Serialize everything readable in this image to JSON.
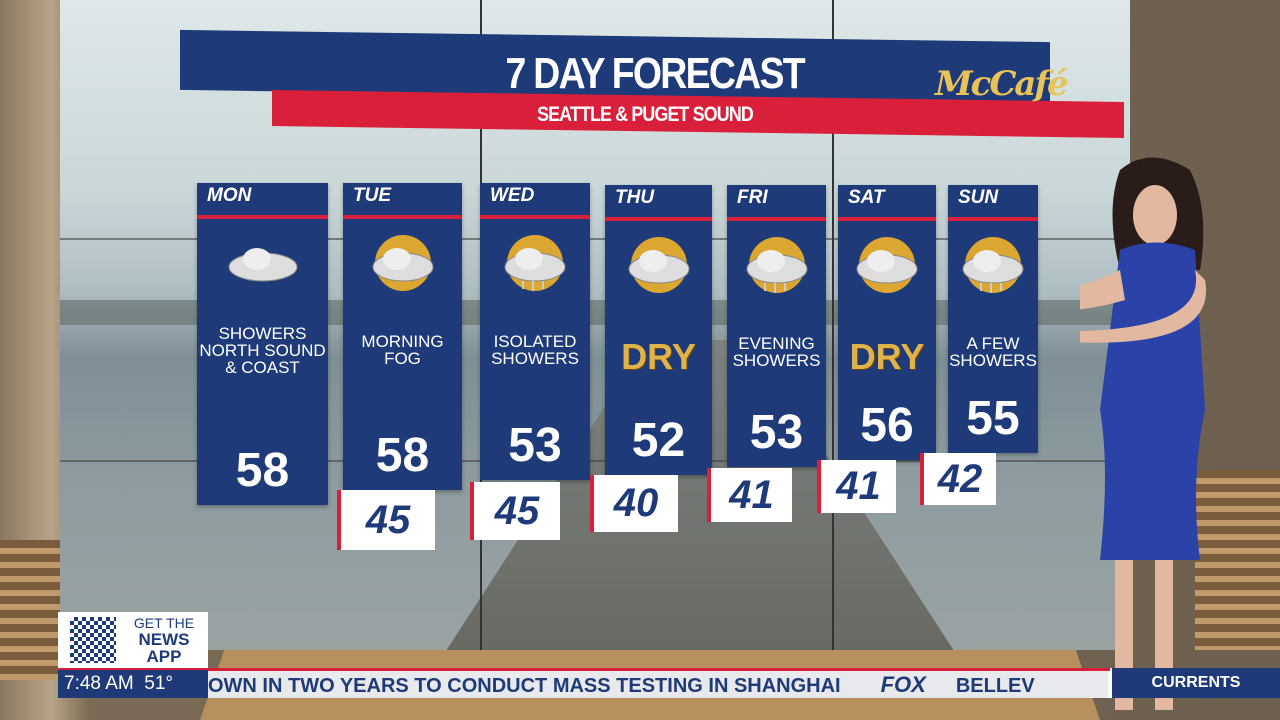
{
  "forecast": {
    "title": "7 DAY FORECAST",
    "subtitle": "SEATTLE & PUGET SOUND",
    "sponsor": "McCafé",
    "days": [
      {
        "day": "MON",
        "condition": "SHOWERS NORTH SOUND & COAST",
        "icon": "cloud-icon",
        "high": "58",
        "low": null
      },
      {
        "day": "TUE",
        "condition": "MORNING FOG",
        "icon": "fog-sun-icon",
        "high": "58",
        "low": "45"
      },
      {
        "day": "WED",
        "condition": "ISOLATED SHOWERS",
        "icon": "showers-sun-icon",
        "high": "53",
        "low": "45"
      },
      {
        "day": "THU",
        "condition": "DRY",
        "icon": "partly-cloudy-icon",
        "high": "52",
        "low": "40"
      },
      {
        "day": "FRI",
        "condition": "EVENING SHOWERS",
        "icon": "showers-sun-icon",
        "high": "53",
        "low": "41"
      },
      {
        "day": "SAT",
        "condition": "DRY",
        "icon": "partly-cloudy-icon",
        "high": "56",
        "low": "41"
      },
      {
        "day": "SUN",
        "condition": "A FEW SHOWERS",
        "icon": "showers-sun-icon",
        "high": "55",
        "low": "42"
      }
    ]
  },
  "promo": {
    "line1": "GET THE",
    "line2": "NEWS",
    "line3": "APP"
  },
  "lower_third": {
    "time": "7:48 AM",
    "temperature": "51°",
    "crawl_text": "OWN IN TWO YEARS TO CONDUCT MASS TESTING IN SHANGHAI",
    "network": "FOX",
    "next_text": "BELLEV",
    "segment": "CURRENTS"
  },
  "colors": {
    "navy": "#1f3a78",
    "red": "#d91f3a",
    "gold": "#e0b24a"
  }
}
